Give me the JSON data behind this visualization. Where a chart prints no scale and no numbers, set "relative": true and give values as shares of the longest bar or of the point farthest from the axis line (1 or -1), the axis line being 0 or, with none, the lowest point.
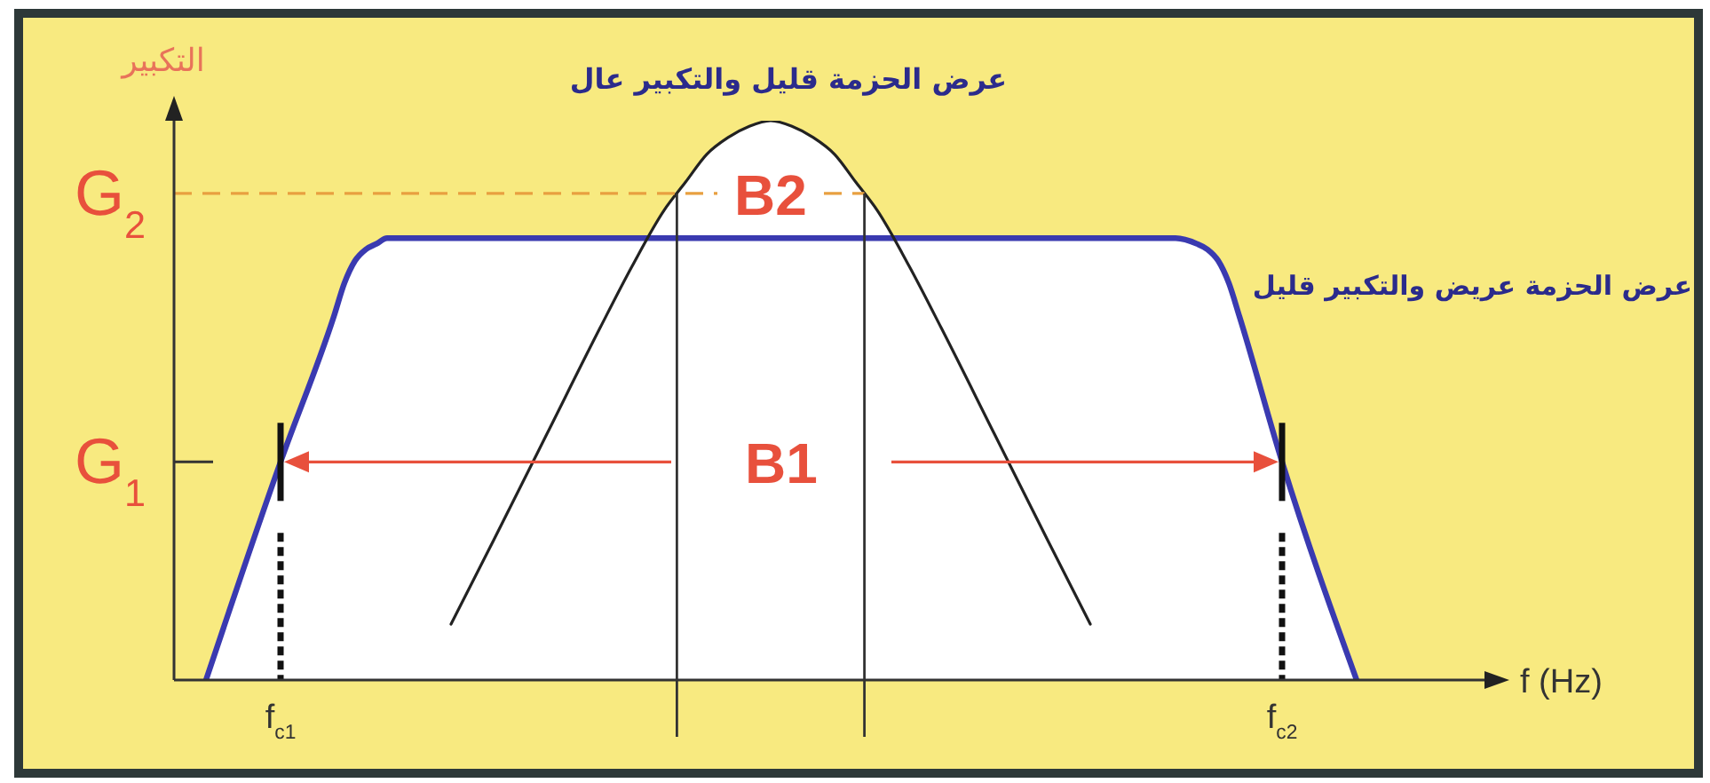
{
  "chart_data": {
    "type": "area",
    "relative": true,
    "ylabel": "التكبير",
    "xlabel": "f (Hz)",
    "categories": [
      null,
      null,
      null,
      null,
      null,
      null,
      null,
      null,
      null,
      null,
      "f$_{c1}$",
      null,
      null,
      null,
      null,
      null,
      null,
      null,
      null,
      null,
      null,
      null,
      null,
      null,
      null,
      null,
      null,
      null,
      null,
      null,
      null,
      null,
      null,
      null,
      null,
      null,
      null,
      null,
      null,
      null,
      null,
      null,
      null,
      null,
      null,
      null,
      null,
      null,
      null,
      null,
      null,
      null,
      null,
      null,
      null,
      null,
      null,
      null,
      null,
      null,
      null,
      null,
      null,
      null,
      null,
      null,
      null,
      null,
      null,
      null,
      null,
      null,
      null,
      null,
      null,
      null,
      null,
      null,
      null,
      null,
      null,
      null,
      null,
      null,
      null,
      null,
      null,
      null,
      null,
      null,
      null,
      null,
      null,
      null,
      null,
      null,
      null,
      null,
      null,
      null,
      null,
      null,
      null,
      null,
      "f$_{c2}$",
      null,
      null,
      null,
      null,
      null,
      null,
      null,
      null,
      null,
      null,
      null,
      null,
      null,
      null,
      null,
      null,
      null,
      null,
      null
    ],
    "series": [
      {
        "name": "عرض الحزمة عريض والتكبير قليل",
        "color": "#3a3ab0",
        "values": [
          null,
          null,
          null,
          0,
          null,
          null,
          null,
          null,
          null,
          null,
          0.39,
          null,
          null,
          null,
          null,
          0.65,
          0.71,
          0.75,
          0.77,
          0.78,
          0.79,
          null,
          null,
          null,
          null,
          null,
          null,
          null,
          null,
          null,
          null,
          null,
          null,
          null,
          null,
          null,
          null,
          null,
          null,
          null,
          null,
          null,
          null,
          null,
          null,
          null,
          null,
          null,
          null,
          null,
          null,
          null,
          null,
          null,
          null,
          null,
          null,
          null,
          null,
          null,
          null,
          null,
          null,
          null,
          null,
          null,
          null,
          null,
          null,
          null,
          null,
          null,
          null,
          null,
          null,
          null,
          null,
          null,
          null,
          null,
          null,
          null,
          null,
          null,
          null,
          null,
          null,
          null,
          null,
          null,
          null,
          null,
          null,
          null,
          0.79,
          null,
          0.78,
          0.77,
          0.75,
          0.71,
          0.65,
          null,
          null,
          null,
          0.39,
          null,
          null,
          null,
          null,
          null,
          null,
          0,
          null,
          null,
          null,
          null,
          null,
          null,
          null,
          null,
          null,
          null,
          null,
          null
        ]
      },
      {
        "name": "عرض الحزمة قليل والتكبير عال",
        "color": "#222222",
        "values": [
          null,
          null,
          null,
          null,
          null,
          null,
          null,
          null,
          null,
          null,
          null,
          null,
          null,
          null,
          null,
          null,
          null,
          null,
          null,
          null,
          null,
          null,
          null,
          null,
          null,
          null,
          0.1,
          null,
          null,
          null,
          0.25,
          null,
          null,
          null,
          null,
          0.44,
          null,
          null,
          null,
          null,
          0.63,
          null,
          null,
          0.74,
          null,
          null,
          0.84,
          null,
          0.89,
          null,
          0.94,
          null,
          0.97,
          null,
          0.99,
          null,
          1,
          null,
          0.99,
          null,
          0.97,
          null,
          0.94,
          null,
          0.89,
          null,
          0.84,
          null,
          null,
          0.74,
          null,
          null,
          0.63,
          null,
          null,
          null,
          null,
          0.44,
          null,
          null,
          null,
          null,
          0.25,
          null,
          null,
          null,
          0.1,
          null,
          null,
          null,
          null,
          null,
          null,
          null,
          null,
          null,
          null,
          null,
          null,
          null,
          null,
          null,
          null,
          null,
          null,
          null,
          null,
          null,
          null,
          null,
          null,
          null,
          null,
          null,
          null,
          null,
          null,
          null,
          null,
          null,
          null,
          null,
          null,
          null
        ]
      }
    ],
    "ref_lines": [
      {
        "axis": "y",
        "value": 0.87,
        "label": "G$_{2}$",
        "color": "#e8a040",
        "line_style": "dashed"
      },
      {
        "axis": "y",
        "value": 0.39,
        "label": "G$_{1}$",
        "color": "#e8503c"
      }
    ],
    "annotations": [
      "B2",
      "B1"
    ]
  }
}
